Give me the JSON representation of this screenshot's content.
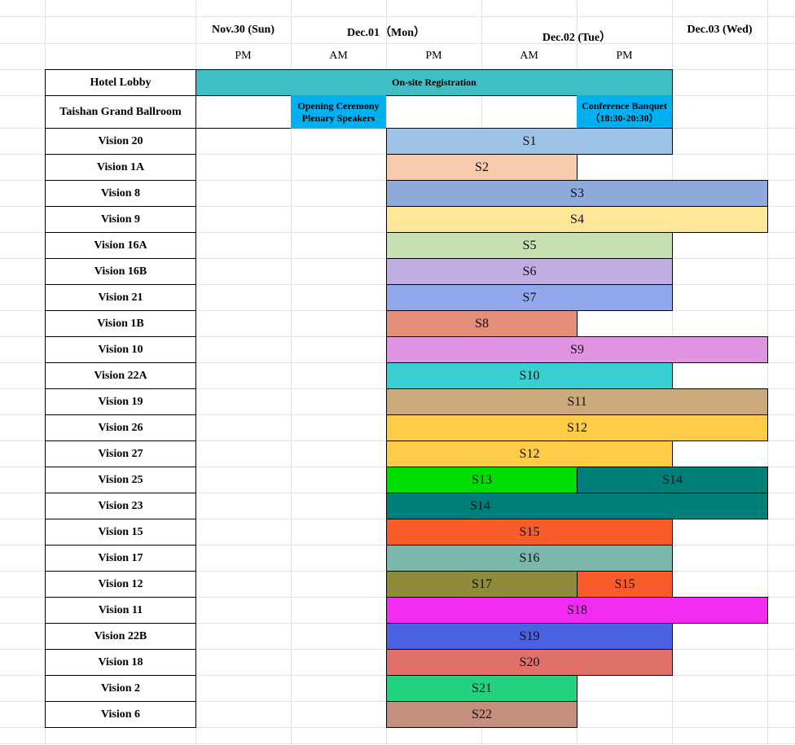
{
  "header": {
    "days": [
      "Nov.30 (Sun)",
      "Dec.01（Mon）",
      "Dec.02 (Tue）",
      "Dec.03 (Wed)"
    ],
    "periods": [
      "PM",
      "AM",
      "PM",
      "AM",
      "PM"
    ]
  },
  "events": {
    "hotel_lobby": {
      "label": "Hotel Lobby",
      "registration": "On-site Registration",
      "color": "#40BEC6"
    },
    "ballroom": {
      "label": "Taishan Grand Ballroom",
      "opening": "Opening Ceremony\nPlenary Speakers",
      "banquet": "Conference Banquet\n（18:30-20:30）",
      "color": "#00B0F0"
    }
  },
  "rooms": [
    {
      "name": "Vision 20",
      "sessions": [
        {
          "label": "S1",
          "start": "Dec.01 PM",
          "end": "Dec.02 PM",
          "color": "#9DC3E6"
        }
      ]
    },
    {
      "name": "Vision 1A",
      "sessions": [
        {
          "label": "S2",
          "start": "Dec.01 PM",
          "end": "Dec.02 AM",
          "color": "#F8CBAD"
        }
      ]
    },
    {
      "name": "Vision 8",
      "sessions": [
        {
          "label": "S3",
          "start": "Dec.01 PM",
          "end": "Dec.03",
          "color": "#8EA9DB"
        }
      ]
    },
    {
      "name": "Vision 9",
      "sessions": [
        {
          "label": "S4",
          "start": "Dec.01 PM",
          "end": "Dec.03",
          "color": "#FFE699"
        }
      ]
    },
    {
      "name": "Vision 16A",
      "sessions": [
        {
          "label": "S5",
          "start": "Dec.01 PM",
          "end": "Dec.02 PM",
          "color": "#C6E0B4"
        }
      ]
    },
    {
      "name": "Vision 16B",
      "sessions": [
        {
          "label": "S6",
          "start": "Dec.01 PM",
          "end": "Dec.02 PM",
          "color": "#C0AEE2"
        }
      ]
    },
    {
      "name": "Vision 21",
      "sessions": [
        {
          "label": "S7",
          "start": "Dec.01 PM",
          "end": "Dec.02 PM",
          "color": "#92A8EC"
        }
      ]
    },
    {
      "name": "Vision 1B",
      "sessions": [
        {
          "label": "S8",
          "start": "Dec.01 PM",
          "end": "Dec.02 AM",
          "color": "#E48F7A"
        }
      ]
    },
    {
      "name": "Vision 10",
      "sessions": [
        {
          "label": "S9",
          "start": "Dec.01 PM",
          "end": "Dec.03",
          "color": "#E194E1"
        }
      ]
    },
    {
      "name": "Vision 22A",
      "sessions": [
        {
          "label": "S10",
          "start": "Dec.01 PM",
          "end": "Dec.02 PM",
          "color": "#3ACFD0"
        }
      ]
    },
    {
      "name": "Vision 19",
      "sessions": [
        {
          "label": "S11",
          "start": "Dec.01 PM",
          "end": "Dec.03",
          "color": "#CAA97A"
        }
      ]
    },
    {
      "name": "Vision 26",
      "sessions": [
        {
          "label": "S12",
          "start": "Dec.01 PM",
          "end": "Dec.03",
          "color": "#FFCC47"
        }
      ]
    },
    {
      "name": "Vision 27",
      "sessions": [
        {
          "label": "S12",
          "start": "Dec.01 PM",
          "end": "Dec.02 PM",
          "color": "#FFCC47"
        }
      ]
    },
    {
      "name": "Vision 25",
      "sessions": [
        {
          "label": "S13",
          "start": "Dec.01 PM",
          "end": "Dec.02 AM",
          "color": "#00DD00"
        },
        {
          "label": "S14",
          "start": "Dec.02 PM",
          "end": "Dec.03",
          "color": "#007F7A"
        }
      ]
    },
    {
      "name": "Vision 23",
      "sessions": [
        {
          "label": "S14",
          "start": "Dec.01 PM",
          "end": "Dec.03",
          "color": "#007F7A"
        }
      ]
    },
    {
      "name": "Vision 15",
      "sessions": [
        {
          "label": "S15",
          "start": "Dec.01 PM",
          "end": "Dec.02 PM",
          "color": "#F95C2B"
        }
      ]
    },
    {
      "name": "Vision 17",
      "sessions": [
        {
          "label": "S16",
          "start": "Dec.01 PM",
          "end": "Dec.02 PM",
          "color": "#7BB8AB"
        }
      ]
    },
    {
      "name": "Vision 12",
      "sessions": [
        {
          "label": "S17",
          "start": "Dec.01 PM",
          "end": "Dec.02 AM",
          "color": "#8E8B3A"
        },
        {
          "label": "S15",
          "start": "Dec.02 PM",
          "end": "Dec.02 PM",
          "color": "#F95C2B"
        }
      ]
    },
    {
      "name": "Vision 11",
      "sessions": [
        {
          "label": "S18",
          "start": "Dec.01 PM",
          "end": "Dec.03",
          "color": "#F02CF0"
        }
      ]
    },
    {
      "name": "Vision 22B",
      "sessions": [
        {
          "label": "S19",
          "start": "Dec.01 PM",
          "end": "Dec.02 PM",
          "color": "#4A62E2"
        }
      ]
    },
    {
      "name": "Vision 18",
      "sessions": [
        {
          "label": "S20",
          "start": "Dec.01 PM",
          "end": "Dec.02 PM",
          "color": "#E2706A"
        }
      ]
    },
    {
      "name": "Vision 2",
      "sessions": [
        {
          "label": "S21",
          "start": "Dec.01 PM",
          "end": "Dec.02 AM",
          "color": "#22D27F"
        }
      ]
    },
    {
      "name": "Vision 6",
      "sessions": [
        {
          "label": "S22",
          "start": "Dec.01 PM",
          "end": "Dec.02 AM",
          "color": "#C48F7E"
        }
      ]
    }
  ]
}
